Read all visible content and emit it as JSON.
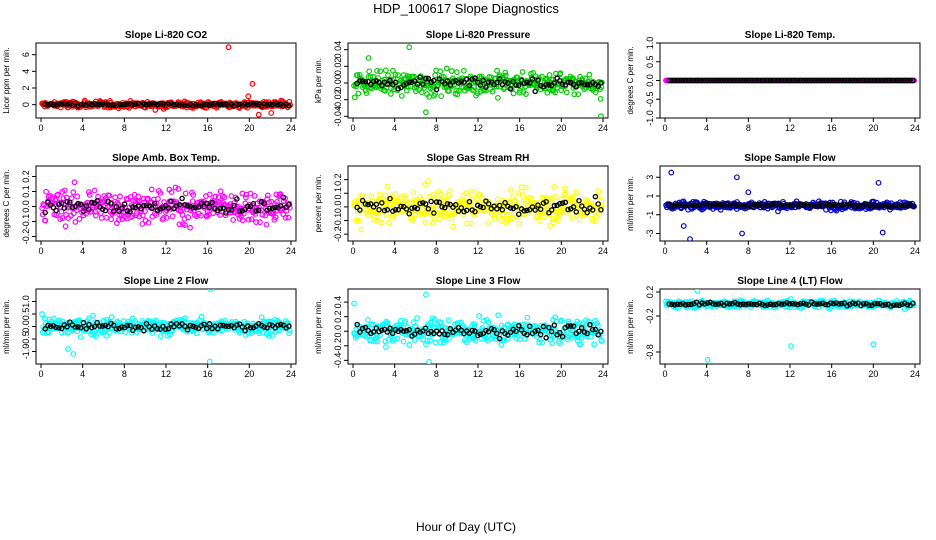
{
  "figure": {
    "title": "HDP_100617  Slope Diagnostics",
    "xlabel": "Hour of Day (UTC)"
  },
  "chart_data": [
    {
      "type": "scatter",
      "title": "Slope Li-820 CO2",
      "ylabel": "Licor ppm per min.",
      "color": "#ff0000",
      "x_ticks": [
        "0",
        "4",
        "8",
        "12",
        "16",
        "20",
        "24"
      ],
      "xlim": [
        0,
        24
      ],
      "ylim": [
        -1.6,
        7.4
      ],
      "y_ticks": [
        "0",
        "2",
        "4",
        "6"
      ],
      "y_tick_values": [
        0,
        2,
        4,
        6
      ],
      "spread": 0.35,
      "outliers": [
        {
          "x": 18.0,
          "y": 6.9
        },
        {
          "x": 20.3,
          "y": 2.5
        },
        {
          "x": 20.9,
          "y": -1.2
        },
        {
          "x": 22.1,
          "y": -1.0
        },
        {
          "x": 19.9,
          "y": 1.0
        }
      ]
    },
    {
      "type": "scatter",
      "title": "Slope Li-820 Pressure",
      "ylabel": "kPa per min.",
      "color": "#00cc00",
      "x_ticks": [
        "0",
        "4",
        "8",
        "12",
        "16",
        "20",
        "24"
      ],
      "xlim": [
        0,
        24
      ],
      "ylim": [
        -0.042,
        0.048
      ],
      "y_ticks": [
        "-0.04",
        "-0.02",
        "0.00",
        "0.02",
        "0.04"
      ],
      "y_tick_values": [
        -0.04,
        -0.02,
        0,
        0.02,
        0.04
      ],
      "spread": 0.012,
      "outliers": [
        {
          "x": 5.4,
          "y": 0.043
        },
        {
          "x": 23.8,
          "y": -0.04
        },
        {
          "x": 7.0,
          "y": -0.035
        },
        {
          "x": 1.5,
          "y": 0.03
        }
      ]
    },
    {
      "type": "scatter",
      "title": "Slope Li-820 Temp.",
      "ylabel": "degrees C per min.",
      "color": "#ff00ff",
      "x_ticks": [
        "0",
        "4",
        "8",
        "12",
        "16",
        "20",
        "24"
      ],
      "xlim": [
        0,
        24
      ],
      "ylim": [
        -1.0,
        1.0
      ],
      "y_ticks": [
        "-1.0",
        "-0.5",
        "0.0",
        "0.5",
        "1.0"
      ],
      "y_tick_values": [
        -1.0,
        -0.5,
        0,
        0.5,
        1.0
      ],
      "spread": 0.0,
      "outliers": []
    },
    {
      "type": "scatter",
      "title": "Slope Amb. Box Temp.",
      "ylabel": "degrees C per min.",
      "color": "#ff00ff",
      "x_ticks": [
        "0",
        "4",
        "8",
        "12",
        "16",
        "20",
        "24"
      ],
      "xlim": [
        0,
        24
      ],
      "ylim": [
        -0.23,
        0.27
      ],
      "y_ticks": [
        "-0.2",
        "-0.1",
        "0.0",
        "0.1",
        "0.2"
      ],
      "y_tick_values": [
        -0.2,
        -0.1,
        0,
        0.1,
        0.2
      ],
      "spread": 0.09,
      "outliers": []
    },
    {
      "type": "scatter",
      "title": "Slope Gas Stream RH",
      "ylabel": "percent per min.",
      "color": "#ffff00",
      "x_ticks": [
        "0",
        "4",
        "8",
        "12",
        "16",
        "20",
        "24"
      ],
      "xlim": [
        0,
        24
      ],
      "ylim": [
        -0.25,
        0.3
      ],
      "y_ticks": [
        "-0.2",
        "-0.1",
        "0.0",
        "0.1",
        "0.2"
      ],
      "y_tick_values": [
        -0.2,
        -0.1,
        0,
        0.1,
        0.2
      ],
      "spread": 0.1,
      "outliers": []
    },
    {
      "type": "scatter",
      "title": "Slope Sample Flow",
      "ylabel": "ml/min per min.",
      "color": "#0000cc",
      "x_ticks": [
        "0",
        "4",
        "8",
        "12",
        "16",
        "20",
        "24"
      ],
      "xlim": [
        0,
        24
      ],
      "ylim": [
        -3.8,
        4.2
      ],
      "y_ticks": [
        "-3",
        "-1",
        "1",
        "3"
      ],
      "y_tick_values": [
        -3,
        -1,
        1,
        3
      ],
      "spread": 0.35,
      "outliers": [
        {
          "x": 0.6,
          "y": 3.5
        },
        {
          "x": 2.4,
          "y": -3.6
        },
        {
          "x": 6.9,
          "y": 3.0
        },
        {
          "x": 7.4,
          "y": -3.0
        },
        {
          "x": 20.5,
          "y": 2.4
        },
        {
          "x": 20.9,
          "y": -2.9
        },
        {
          "x": 1.8,
          "y": -2.2
        },
        {
          "x": 8.0,
          "y": 1.4
        }
      ]
    },
    {
      "type": "scatter",
      "title": "Slope Line 2 Flow",
      "ylabel": "ml/min per min.",
      "color": "#00ffff",
      "x_ticks": [
        "0",
        "4",
        "8",
        "12",
        "16",
        "20",
        "24"
      ],
      "xlim": [
        0,
        24
      ],
      "ylim": [
        -1.5,
        1.5
      ],
      "y_ticks": [
        "-1.0",
        "-0.5",
        "0.0",
        "0.5",
        "1.0"
      ],
      "y_tick_values": [
        -1.0,
        -0.5,
        0,
        0.5,
        1.0
      ],
      "spread": 0.28,
      "outliers": [
        {
          "x": 16.3,
          "y": 1.5
        },
        {
          "x": 16.2,
          "y": -1.4
        },
        {
          "x": 3.1,
          "y": -1.1
        },
        {
          "x": 2.6,
          "y": -0.9
        }
      ]
    },
    {
      "type": "scatter",
      "title": "Slope Line 3 Flow",
      "ylabel": "ml/min per min.",
      "color": "#00ffff",
      "x_ticks": [
        "0",
        "4",
        "8",
        "12",
        "16",
        "20",
        "24"
      ],
      "xlim": [
        0,
        24
      ],
      "ylim": [
        -0.45,
        0.58
      ],
      "y_ticks": [
        "-0.4",
        "-0.2",
        "0.0",
        "0.2",
        "0.4"
      ],
      "y_tick_values": [
        -0.4,
        -0.2,
        0,
        0.2,
        0.4
      ],
      "spread": 0.14,
      "outliers": [
        {
          "x": 7.0,
          "y": 0.5
        },
        {
          "x": 7.3,
          "y": -0.42
        },
        {
          "x": 0.1,
          "y": 0.38
        }
      ]
    },
    {
      "type": "scatter",
      "title": "Slope Line 4 (LT) Flow",
      "ylabel": "ml/min per min.",
      "color": "#00ffff",
      "x_ticks": [
        "0",
        "4",
        "8",
        "12",
        "16",
        "20",
        "24"
      ],
      "xlim": [
        0,
        24
      ],
      "ylim": [
        -1.0,
        0.25
      ],
      "y_ticks": [
        "-0.8",
        "-0.2",
        "0.2"
      ],
      "y_tick_values": [
        -0.8,
        -0.2,
        0.2
      ],
      "spread": 0.05,
      "outliers": [
        {
          "x": 4.1,
          "y": -0.93
        },
        {
          "x": 12.1,
          "y": -0.7
        },
        {
          "x": 20.0,
          "y": -0.67
        },
        {
          "x": 3.1,
          "y": 0.22
        }
      ]
    }
  ]
}
